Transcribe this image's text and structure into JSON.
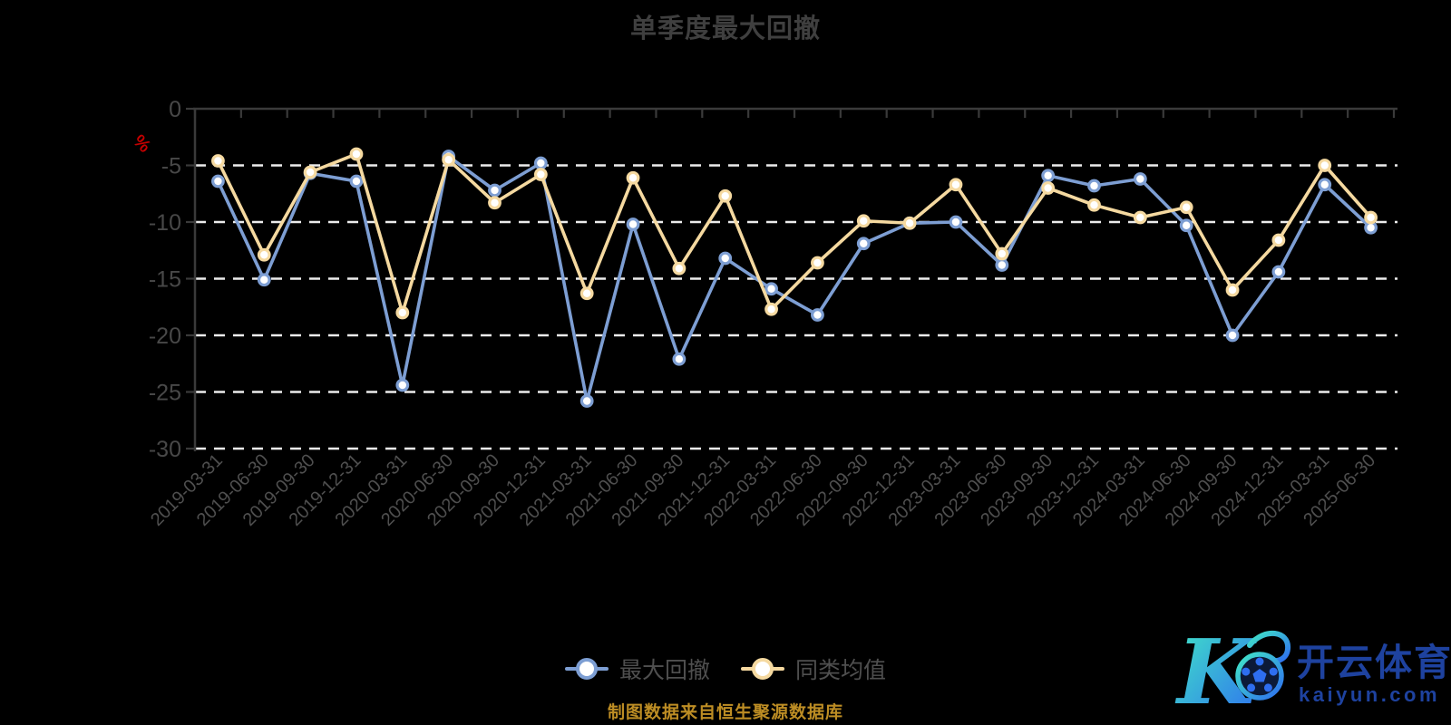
{
  "header": {
    "title": "单季度最大回撤"
  },
  "chart_data": {
    "type": "line",
    "title": "单季度最大回撤",
    "unit_label": "%",
    "categories": [
      "2019-03-31",
      "2019-06-30",
      "2019-09-30",
      "2019-12-31",
      "2020-03-31",
      "2020-06-30",
      "2020-09-30",
      "2020-12-31",
      "2021-03-31",
      "2021-06-30",
      "2021-09-30",
      "2021-12-31",
      "2022-03-31",
      "2022-06-30",
      "2022-09-30",
      "2022-12-31",
      "2023-03-31",
      "2023-06-30",
      "2023-09-30",
      "2023-12-31",
      "2024-03-31",
      "2024-06-30",
      "2024-09-30",
      "2024-12-31",
      "2025-03-31",
      "2025-06-30"
    ],
    "series": [
      {
        "name": "最大回撤",
        "color": "#7d9ed3",
        "values": [
          -6.4,
          -15.1,
          -5.7,
          -6.4,
          -24.4,
          -4.2,
          -7.2,
          -4.8,
          -25.8,
          -10.2,
          -22.1,
          -13.2,
          -15.9,
          -18.2,
          -11.9,
          -10.1,
          -10.0,
          -13.8,
          -5.9,
          -6.8,
          -6.2,
          -10.3,
          -20.0,
          -14.4,
          -6.7,
          -10.5
        ]
      },
      {
        "name": "同类均值",
        "color": "#f5d9a0",
        "values": [
          -4.6,
          -12.9,
          -5.6,
          -4.0,
          -18.0,
          -4.5,
          -8.3,
          -5.8,
          -16.3,
          -6.1,
          -14.1,
          -7.7,
          -17.7,
          -13.6,
          -9.9,
          -10.1,
          -6.7,
          -12.8,
          -7.0,
          -8.5,
          -9.6,
          -8.7,
          -16.0,
          -11.6,
          -5.0,
          -9.6
        ]
      }
    ],
    "xlabel": "",
    "ylabel": "%",
    "ylim": [
      -30,
      0
    ],
    "y_ticks": [
      0,
      -5,
      -10,
      -15,
      -20,
      -25,
      -30
    ],
    "grid": "horizontal-dashed",
    "legend_position": "bottom-center",
    "marker": "circle-white-fill"
  },
  "style_colors": {
    "grid_line": "#ececec",
    "axis_line": "#3a3a3a",
    "y_tick_label": "#484848",
    "x_tick_label": "#4f4f4f",
    "unit_label": "#c40000",
    "title": "#3f3f3f",
    "legend_text": "#4f4f4f",
    "source_note": "#bd8d24"
  },
  "legend": {
    "items": [
      {
        "label": "最大回撤",
        "color": "#7d9ed3"
      },
      {
        "label": "同类均值",
        "color": "#f5d9a0"
      }
    ]
  },
  "footer": {
    "source_note": "制图数据来自恒生聚源数据库"
  },
  "watermark": {
    "brand": "开云体育",
    "domain": "kaiyun.com",
    "text_color": "#1e429f",
    "gradient": [
      "#41e7c6",
      "#2e6ef0"
    ]
  }
}
